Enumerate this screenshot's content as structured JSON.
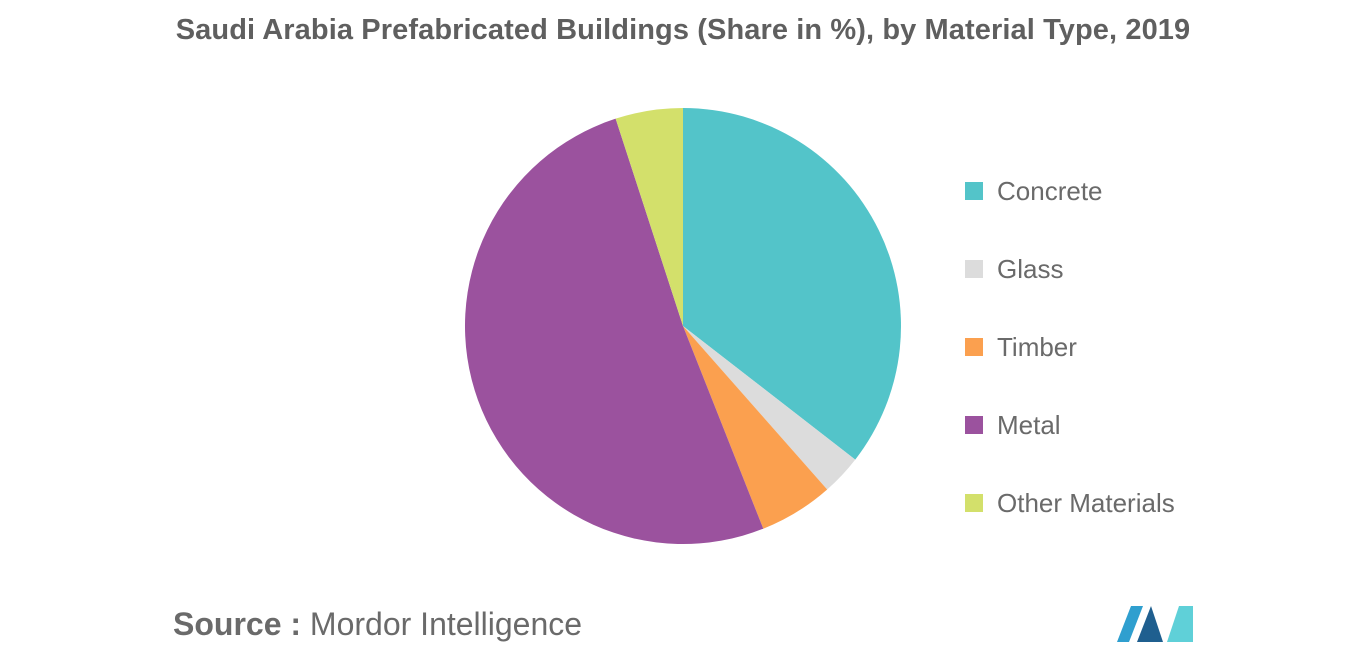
{
  "title": "Saudi Arabia Prefabricated Buildings (Share in %), by Material Type, 2019",
  "source": {
    "prefix": "Source :",
    "name": "Mordor Intelligence"
  },
  "logo": {
    "colors": [
      "#2f9fcf",
      "#1f5f8f",
      "#5fd0d8"
    ]
  },
  "chart_data": {
    "type": "pie",
    "title": "Saudi Arabia Prefabricated Buildings (Share in %), by Material Type, 2019",
    "start_angle_deg": 0,
    "direction": "clockwise",
    "legend_position": "right",
    "slices": [
      {
        "label": "Concrete",
        "value": 35.5,
        "color": "#53c4c9"
      },
      {
        "label": "Glass",
        "value": 3.0,
        "color": "#dcdcdc"
      },
      {
        "label": "Timber",
        "value": 5.5,
        "color": "#fba04f"
      },
      {
        "label": "Metal",
        "value": 51.0,
        "color": "#9b529e"
      },
      {
        "label": "Other Materials",
        "value": 5.0,
        "color": "#d3e06b"
      }
    ]
  }
}
